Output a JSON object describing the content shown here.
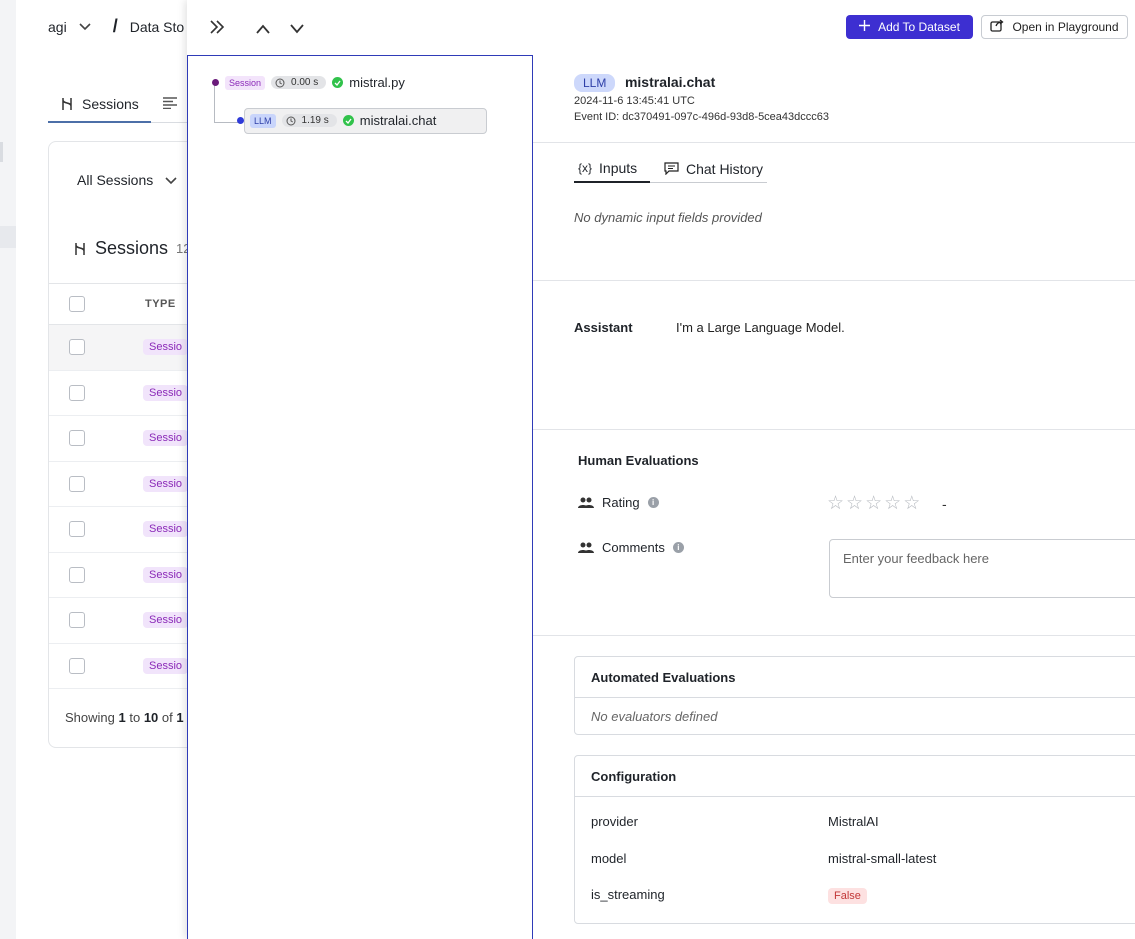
{
  "background": {
    "breadcrumb": {
      "project": "agi",
      "separator": "/",
      "section": "Data Sto"
    },
    "tabs": {
      "sessions": "Sessions"
    },
    "filter": {
      "label": "All Sessions"
    },
    "sessions_header": {
      "title": "Sessions",
      "count": "12"
    },
    "table": {
      "type_header": "TYPE",
      "rows": [
        "Sessio",
        "Sessio",
        "Sessio",
        "Sessio",
        "Sessio",
        "Sessio",
        "Sessio",
        "Sessio"
      ]
    },
    "pagination": {
      "prefix": "Showing",
      "from": "1",
      "to_word": "to",
      "to": "10",
      "of_word": "of",
      "total": "1"
    }
  },
  "header": {
    "add_to_dataset": "Add To Dataset",
    "open_in_playground": "Open in Playground"
  },
  "trace": {
    "root": {
      "tag": "Session",
      "duration": "0.00 s",
      "name": "mistral.py"
    },
    "child": {
      "tag": "LLM",
      "duration": "1.19 s",
      "name": "mistralai.chat"
    }
  },
  "event": {
    "badge": "LLM",
    "title": "mistralai.chat",
    "timestamp": "2024-11-6 13:45:41 UTC",
    "event_id": "Event ID: dc370491-097c-496d-93d8-5cea43dccc63"
  },
  "tabs": {
    "inputs": "Inputs",
    "inputs_icon_text": "{x}",
    "chat_history": "Chat History"
  },
  "inputs": {
    "empty_text": "No dynamic input fields provided"
  },
  "assistant": {
    "label": "Assistant",
    "text": "I'm a Large Language Model."
  },
  "human_evaluations": {
    "title": "Human Evaluations",
    "rating_label": "Rating",
    "rating_value": "-",
    "stars_filled": 0,
    "stars_total": 5,
    "comments_label": "Comments",
    "comments_placeholder": "Enter your feedback here"
  },
  "automated_evaluations": {
    "title": "Automated Evaluations",
    "empty_text": "No evaluators defined"
  },
  "configuration": {
    "title": "Configuration",
    "rows": [
      {
        "key": "provider",
        "value": "MistralAI"
      },
      {
        "key": "model",
        "value": "mistral-small-latest"
      },
      {
        "key": "is_streaming",
        "value": "False"
      }
    ]
  },
  "colors": {
    "primary_button": "#3d2fd1",
    "session_tag": "#8b2ab8",
    "llm_tag_bg": "#c9d5fb",
    "success": "#31c24b",
    "false_pill": "#c23838"
  }
}
